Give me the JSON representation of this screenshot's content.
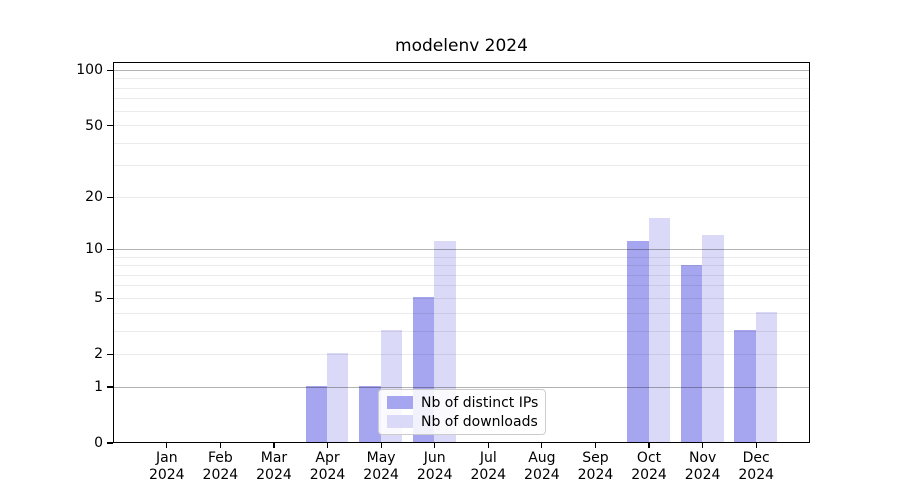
{
  "title": "modelenv 2024",
  "chart_data": {
    "type": "bar",
    "title": "modelenv 2024",
    "categories": [
      "Jan",
      "Feb",
      "Mar",
      "Apr",
      "May",
      "Jun",
      "Jul",
      "Aug",
      "Sep",
      "Oct",
      "Nov",
      "Dec"
    ],
    "category_year": "2024",
    "series": [
      {
        "name": "Nb of distinct IPs",
        "color": "#a5a5f0",
        "values": [
          0,
          0,
          0,
          1,
          1,
          5,
          0,
          0,
          0,
          11,
          8,
          3
        ]
      },
      {
        "name": "Nb of downloads",
        "color": "#dadaf8",
        "values": [
          0,
          0,
          0,
          2,
          3,
          11,
          0,
          0,
          0,
          15,
          12,
          4
        ]
      }
    ],
    "yscale": "log1p",
    "ylim": [
      0,
      111
    ],
    "yticks_labeled": [
      0,
      1,
      2,
      5,
      10,
      20,
      50,
      100
    ],
    "gridlines_major": [
      1,
      10,
      100
    ],
    "gridlines_minor": [
      2,
      3,
      4,
      5,
      6,
      7,
      8,
      9,
      20,
      30,
      40,
      50,
      60,
      70,
      80,
      90
    ],
    "bar_width_fraction": 0.4,
    "grid": true,
    "legend_position": "lower center"
  },
  "colors": {
    "background": "#ffffff",
    "bar_ips": "#a5a5f0",
    "bar_downloads": "#dadaf8",
    "grid_major": "rgba(0,0,0,0.30)",
    "grid_minor": "rgba(0,0,0,0.08)",
    "spine": "#000000",
    "text": "#000000",
    "legend_border": "#cccccc",
    "legend_bg": "rgba(255,255,255,0.85)"
  }
}
